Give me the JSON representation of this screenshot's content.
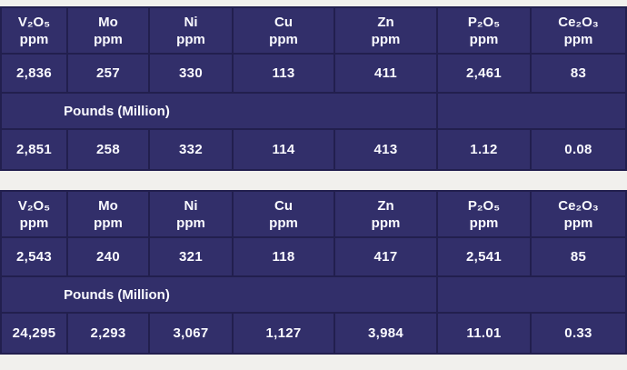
{
  "colors": {
    "cell_background": "#322f6a",
    "grid_border": "#221f4e",
    "page_background": "#f1f0ed",
    "text": "#fafaff"
  },
  "tables": [
    {
      "name": "assay-table-1",
      "columns": [
        {
          "formula": "V₂O₅",
          "unit": "ppm"
        },
        {
          "formula": "Mo",
          "unit": "ppm"
        },
        {
          "formula": "Ni",
          "unit": "ppm"
        },
        {
          "formula": "Cu",
          "unit": "ppm"
        },
        {
          "formula": "Zn",
          "unit": "ppm"
        },
        {
          "formula": "P₂O₅",
          "unit": "ppm"
        },
        {
          "formula": "Ce₂O₃",
          "unit": "ppm"
        }
      ],
      "ppm_row": [
        "2,836",
        "257",
        "330",
        "113",
        "411",
        "2,461",
        "83"
      ],
      "section_label": "Pounds (Million)",
      "pounds_row": [
        "2,851",
        "258",
        "332",
        "114",
        "413",
        "1.12",
        "0.08"
      ]
    },
    {
      "name": "assay-table-2",
      "columns": [
        {
          "formula": "V₂O₅",
          "unit": "ppm"
        },
        {
          "formula": "Mo",
          "unit": "ppm"
        },
        {
          "formula": "Ni",
          "unit": "ppm"
        },
        {
          "formula": "Cu",
          "unit": "ppm"
        },
        {
          "formula": "Zn",
          "unit": "ppm"
        },
        {
          "formula": "P₂O₅",
          "unit": "ppm"
        },
        {
          "formula": "Ce₂O₃",
          "unit": "ppm"
        }
      ],
      "ppm_row": [
        "2,543",
        "240",
        "321",
        "118",
        "417",
        "2,541",
        "85"
      ],
      "section_label": "Pounds (Million)",
      "pounds_row": [
        "24,295",
        "2,293",
        "3,067",
        "1,127",
        "3,984",
        "11.01",
        "0.33"
      ]
    }
  ]
}
